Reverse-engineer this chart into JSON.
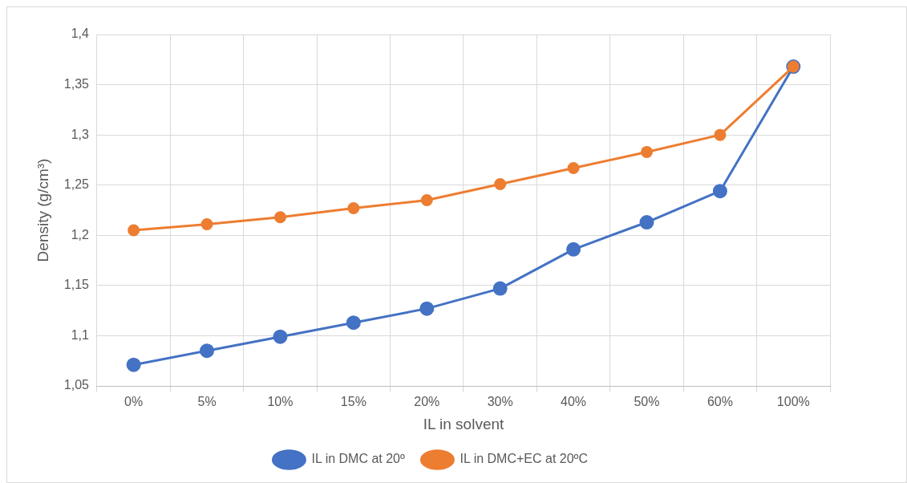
{
  "chart_data": {
    "type": "line",
    "xlabel": "IL in solvent",
    "ylabel": "Density (g/cm³)",
    "categories": [
      "0%",
      "5%",
      "10%",
      "15%",
      "20%",
      "30%",
      "40%",
      "50%",
      "60%",
      "100%"
    ],
    "series": [
      {
        "name": "IL in DMC at 20º",
        "color": "#4472c4",
        "values": [
          1.071,
          1.085,
          1.099,
          1.113,
          1.127,
          1.147,
          1.186,
          1.213,
          1.244,
          1.368
        ]
      },
      {
        "name": "IL in DMC+EC at 20ºC",
        "color": "#ed7d31",
        "values": [
          1.205,
          1.211,
          1.218,
          1.227,
          1.235,
          1.251,
          1.267,
          1.283,
          1.3,
          1.368
        ]
      }
    ],
    "ylim": [
      1.05,
      1.4
    ],
    "yticks": [
      {
        "value": 1.05,
        "label": "1,05"
      },
      {
        "value": 1.1,
        "label": "1,1"
      },
      {
        "value": 1.15,
        "label": "1,15"
      },
      {
        "value": 1.2,
        "label": "1,2"
      },
      {
        "value": 1.25,
        "label": "1,25"
      },
      {
        "value": 1.3,
        "label": "1,3"
      },
      {
        "value": 1.35,
        "label": "1,35"
      },
      {
        "value": 1.4,
        "label": "1,4"
      }
    ],
    "grid": true,
    "legend": "bottom",
    "marker": "circle",
    "line_style": "solid"
  }
}
